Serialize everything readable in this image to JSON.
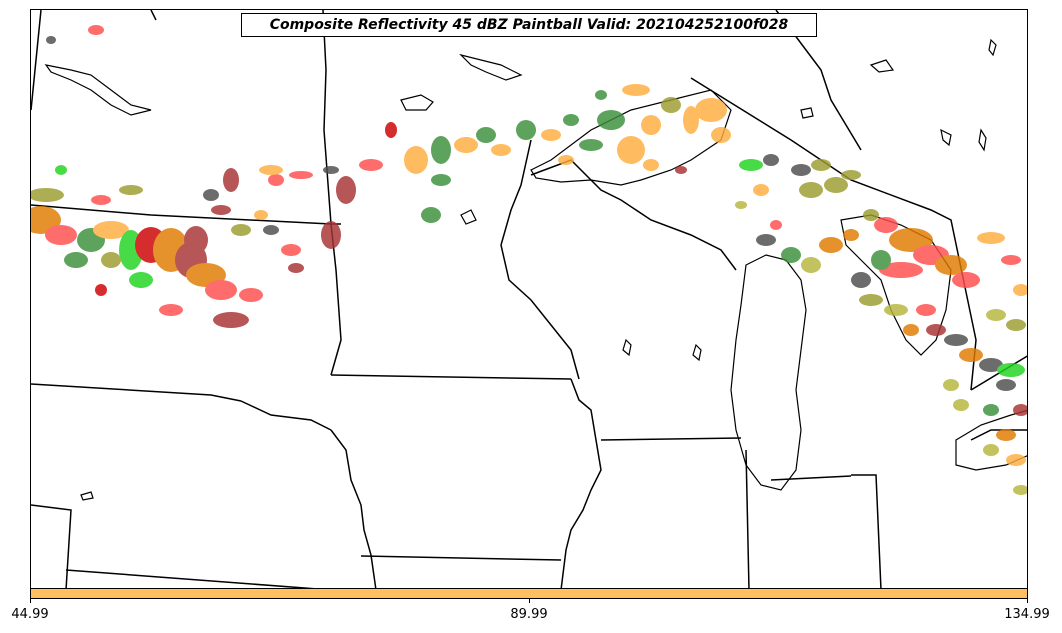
{
  "title": "Composite Reflectivity 45 dBZ Paintball Valid: 202104252100f028",
  "colorbar": {
    "color": "#ffc061",
    "ticks": [
      "44.99",
      "89.99",
      "134.99"
    ]
  },
  "map": {
    "boundary_color": "#000000",
    "paintball_colors": [
      "#ff4d4d",
      "#ffad3d",
      "#3a8f3a",
      "#9c9c2e",
      "#1fd41f",
      "#4d4d4d",
      "#a83232",
      "#cc0000",
      "#e07b00",
      "#b5b53b"
    ]
  }
}
